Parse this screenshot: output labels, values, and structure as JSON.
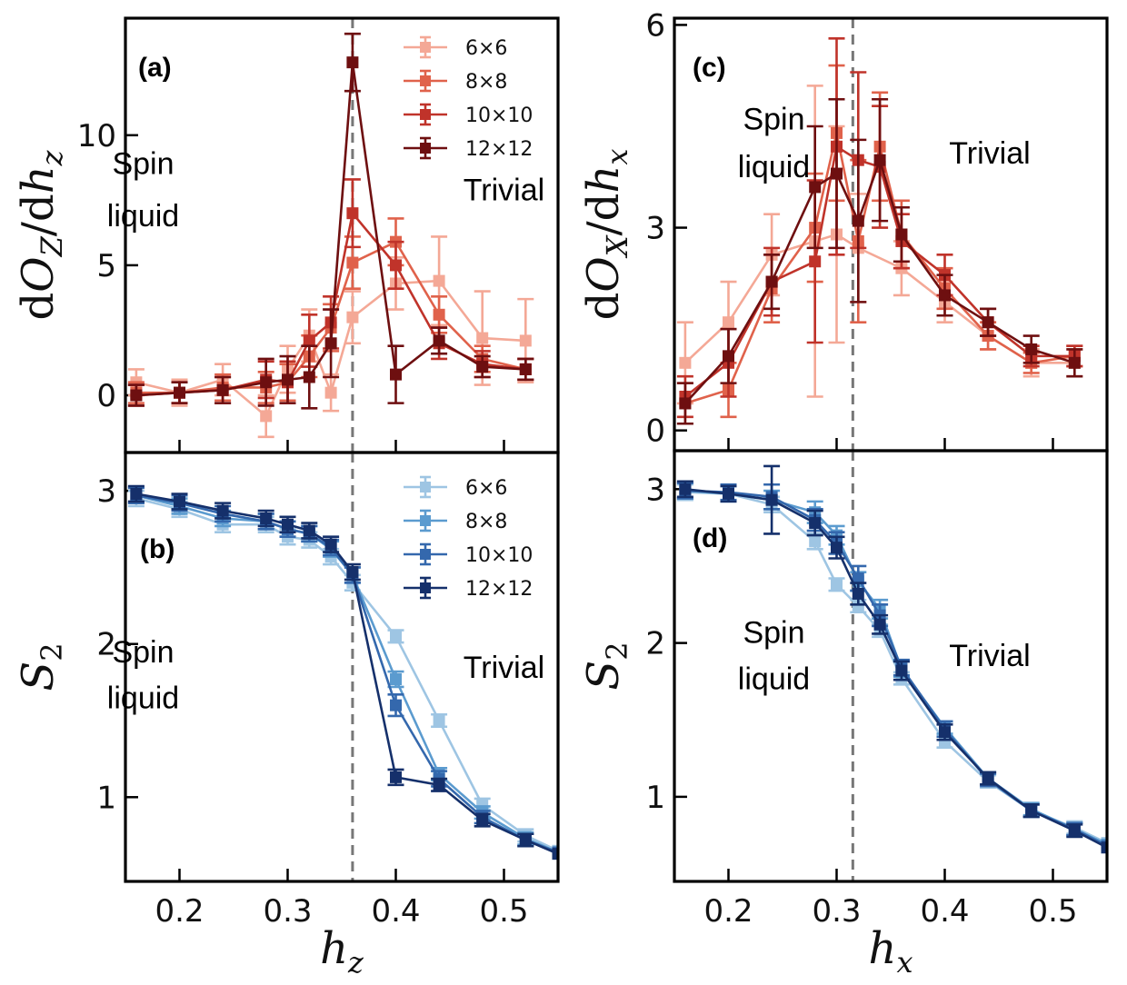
{
  "chart_data": [
    {
      "id": "a",
      "type": "line",
      "panel_label": "(a)",
      "xlim": [
        0.15,
        0.55
      ],
      "ylim": [
        -2.2,
        14.5
      ],
      "xticks": [
        0.2,
        0.3,
        0.4,
        0.5
      ],
      "yticks": [
        0,
        5,
        10
      ],
      "ytick_labels": [
        "0",
        "5",
        "10"
      ],
      "ylabel": "dO_Z/dh_z",
      "ylabel_parts": {
        "prefix": "d",
        "main": "O",
        "main_sub": "Z",
        "slash": "/d",
        "var": "h",
        "var_sub": "z"
      },
      "critical_x": 0.36,
      "regions": [
        {
          "text": "Spin",
          "x": 0.2,
          "y": 8.5
        },
        {
          "text": "liquid",
          "x": 0.2,
          "y": 6.5
        },
        {
          "text": "Trivial",
          "x": 0.5,
          "y": 7.5
        }
      ],
      "legend_position": "top-right",
      "series": [
        {
          "name": "6×6",
          "color": "#f4a896",
          "x": [
            0.16,
            0.2,
            0.24,
            0.28,
            0.3,
            0.32,
            0.34,
            0.36,
            0.4,
            0.44,
            0.48,
            0.52
          ],
          "y": [
            0.5,
            0.1,
            0.6,
            -0.8,
            1.0,
            2.3,
            0.1,
            3.0,
            4.3,
            4.4,
            2.2,
            2.1
          ],
          "err": [
            0.5,
            0.5,
            0.6,
            0.8,
            0.9,
            1.0,
            0.7,
            1.0,
            1.0,
            1.7,
            1.8,
            1.6
          ]
        },
        {
          "name": "8×8",
          "color": "#e0624b",
          "x": [
            0.16,
            0.2,
            0.24,
            0.28,
            0.3,
            0.32,
            0.34,
            0.36,
            0.4,
            0.44,
            0.48,
            0.52
          ],
          "y": [
            0.1,
            0.1,
            0.3,
            0.3,
            0.5,
            1.5,
            2.6,
            5.1,
            5.9,
            3.1,
            1.4,
            1.0
          ],
          "err": [
            0.4,
            0.4,
            0.5,
            0.6,
            0.7,
            0.8,
            0.9,
            1.0,
            0.9,
            0.7,
            0.5,
            0.4
          ]
        },
        {
          "name": "10×10",
          "color": "#c0332a",
          "x": [
            0.16,
            0.2,
            0.24,
            0.28,
            0.3,
            0.32,
            0.34,
            0.36,
            0.4,
            0.44,
            0.48,
            0.52
          ],
          "y": [
            0.0,
            0.1,
            0.2,
            0.6,
            0.5,
            2.1,
            2.8,
            7.0,
            5.0,
            2.0,
            1.2,
            1.0
          ],
          "err": [
            0.4,
            0.4,
            0.5,
            0.7,
            0.8,
            1.0,
            1.0,
            1.3,
            0.9,
            0.6,
            0.5,
            0.4
          ]
        },
        {
          "name": "12×12",
          "color": "#6e0f10",
          "x": [
            0.16,
            0.2,
            0.24,
            0.28,
            0.3,
            0.32,
            0.34,
            0.36,
            0.4,
            0.44,
            0.48,
            0.52
          ],
          "y": [
            0.0,
            0.1,
            0.2,
            0.5,
            0.6,
            0.7,
            2.0,
            12.8,
            0.8,
            2.1,
            1.1,
            1.0
          ],
          "err": [
            0.4,
            0.4,
            0.5,
            0.9,
            0.9,
            1.2,
            1.3,
            1.1,
            1.1,
            0.5,
            0.4,
            0.4
          ]
        }
      ]
    },
    {
      "id": "b",
      "type": "line",
      "panel_label": "(b)",
      "xlim": [
        0.15,
        0.55
      ],
      "ylim": [
        0.45,
        3.25
      ],
      "xticks": [
        0.2,
        0.3,
        0.4,
        0.5
      ],
      "xtick_labels": [
        "0.2",
        "0.3",
        "0.4",
        "0.5"
      ],
      "yticks": [
        1,
        2,
        3
      ],
      "ytick_labels": [
        "1",
        "2",
        "3"
      ],
      "xlabel_parts": {
        "var": "h",
        "var_sub": "z"
      },
      "ylabel_parts": {
        "var": "S",
        "var_sub": "2"
      },
      "critical_x": 0.36,
      "regions": [
        {
          "text": "Spin",
          "x": 0.2,
          "y": 1.88
        },
        {
          "text": "liquid",
          "x": 0.2,
          "y": 1.58
        },
        {
          "text": "Trivial",
          "x": 0.5,
          "y": 1.78
        }
      ],
      "legend_position": "top-right",
      "series": [
        {
          "name": "6×6",
          "color": "#9ec5e3",
          "x": [
            0.16,
            0.2,
            0.24,
            0.28,
            0.3,
            0.32,
            0.34,
            0.36,
            0.4,
            0.44,
            0.48,
            0.52,
            0.55
          ],
          "y": [
            2.95,
            2.88,
            2.78,
            2.78,
            2.7,
            2.68,
            2.57,
            2.4,
            2.05,
            1.5,
            0.95,
            0.75,
            0.65
          ],
          "err": [
            0.05,
            0.05,
            0.05,
            0.05,
            0.05,
            0.05,
            0.05,
            0.05,
            0.04,
            0.04,
            0.04,
            0.04,
            0
          ]
        },
        {
          "name": "8×8",
          "color": "#5b9bcf",
          "x": [
            0.16,
            0.2,
            0.24,
            0.28,
            0.3,
            0.32,
            0.34,
            0.36,
            0.4,
            0.44,
            0.48,
            0.52,
            0.55
          ],
          "y": [
            2.97,
            2.9,
            2.82,
            2.8,
            2.75,
            2.72,
            2.62,
            2.45,
            1.77,
            1.15,
            0.9,
            0.73,
            0.64
          ],
          "err": [
            0.05,
            0.05,
            0.05,
            0.05,
            0.05,
            0.05,
            0.05,
            0.05,
            0.05,
            0.04,
            0.04,
            0.04,
            0
          ]
        },
        {
          "name": "10×10",
          "color": "#3468ad",
          "x": [
            0.16,
            0.2,
            0.24,
            0.28,
            0.3,
            0.32,
            0.34,
            0.36,
            0.4,
            0.44,
            0.48,
            0.52,
            0.55
          ],
          "y": [
            2.97,
            2.92,
            2.85,
            2.8,
            2.75,
            2.72,
            2.63,
            2.45,
            1.6,
            1.12,
            0.87,
            0.72,
            0.64
          ],
          "err": [
            0.05,
            0.05,
            0.05,
            0.05,
            0.05,
            0.05,
            0.05,
            0.05,
            0.07,
            0.05,
            0.04,
            0.04,
            0
          ]
        },
        {
          "name": "12×12",
          "color": "#15306b",
          "x": [
            0.16,
            0.2,
            0.24,
            0.28,
            0.3,
            0.32,
            0.34,
            0.36,
            0.4,
            0.44,
            0.48,
            0.52,
            0.55
          ],
          "y": [
            2.98,
            2.93,
            2.87,
            2.82,
            2.78,
            2.74,
            2.65,
            2.47,
            1.13,
            1.08,
            0.85,
            0.72,
            0.63
          ],
          "err": [
            0.05,
            0.05,
            0.05,
            0.05,
            0.05,
            0.05,
            0.05,
            0.05,
            0.05,
            0.04,
            0.04,
            0.04,
            0
          ]
        }
      ]
    },
    {
      "id": "c",
      "type": "line",
      "panel_label": "(c)",
      "xlim": [
        0.15,
        0.55
      ],
      "ylim": [
        -0.3,
        6.1
      ],
      "xticks": [
        0.2,
        0.3,
        0.4,
        0.5
      ],
      "yticks": [
        0,
        3,
        6
      ],
      "ytick_labels": [
        "0",
        "3",
        "6"
      ],
      "ylabel_parts": {
        "prefix": "d",
        "main": "O",
        "main_sub": "X",
        "slash": "/d",
        "var": "h",
        "var_sub": "x"
      },
      "critical_x": 0.315,
      "regions": [
        {
          "text": "Spin",
          "x": 0.2,
          "y": 4.45
        },
        {
          "text": "liquid",
          "x": 0.2,
          "y": 3.75
        },
        {
          "text": "Trivial",
          "x": 0.45,
          "y": 3.95
        }
      ],
      "legend_position": "none",
      "series": [
        {
          "name": "6×6",
          "color": "#f4a896",
          "x": [
            0.16,
            0.2,
            0.24,
            0.28,
            0.3,
            0.32,
            0.36,
            0.4,
            0.44,
            0.48,
            0.52
          ],
          "y": [
            1.0,
            1.6,
            2.6,
            2.8,
            2.9,
            2.7,
            2.4,
            1.9,
            1.4,
            1.0,
            1.0
          ],
          "err": [
            0.6,
            0.6,
            0.6,
            2.3,
            1.6,
            0.8,
            0.4,
            0.3,
            0.2,
            0.2,
            0.2
          ]
        },
        {
          "name": "8×8",
          "color": "#e0624b",
          "x": [
            0.16,
            0.2,
            0.24,
            0.28,
            0.3,
            0.32,
            0.34,
            0.36,
            0.4,
            0.44,
            0.48,
            0.52
          ],
          "y": [
            0.4,
            0.6,
            2.1,
            3.0,
            4.4,
            2.8,
            4.2,
            2.9,
            2.1,
            1.4,
            1.0,
            1.1
          ],
          "err": [
            0.3,
            0.4,
            0.5,
            0.8,
            1.0,
            1.2,
            0.8,
            0.5,
            0.3,
            0.2,
            0.15,
            0.15
          ]
        },
        {
          "name": "10×10",
          "color": "#c0332a",
          "x": [
            0.16,
            0.2,
            0.24,
            0.28,
            0.3,
            0.32,
            0.34,
            0.36,
            0.4,
            0.44,
            0.48,
            0.52
          ],
          "y": [
            0.5,
            1.0,
            2.2,
            2.5,
            4.2,
            4.0,
            3.9,
            2.8,
            2.3,
            1.6,
            1.1,
            1.1
          ],
          "err": [
            0.3,
            0.5,
            0.5,
            1.2,
            1.6,
            1.3,
            0.9,
            0.4,
            0.3,
            0.2,
            0.15,
            0.15
          ]
        },
        {
          "name": "12×12",
          "color": "#6e0f10",
          "x": [
            0.16,
            0.2,
            0.24,
            0.28,
            0.3,
            0.32,
            0.34,
            0.36,
            0.4,
            0.44,
            0.48,
            0.52
          ],
          "y": [
            0.4,
            1.1,
            2.2,
            3.6,
            3.8,
            3.1,
            4.0,
            2.9,
            2.0,
            1.6,
            1.2,
            1.0
          ],
          "err": [
            0.3,
            0.4,
            0.4,
            0.9,
            1.1,
            1.2,
            0.9,
            0.4,
            0.3,
            0.2,
            0.2,
            0.2
          ]
        }
      ]
    },
    {
      "id": "d",
      "type": "line",
      "panel_label": "(d)",
      "xlim": [
        0.15,
        0.55
      ],
      "ylim": [
        0.45,
        3.25
      ],
      "xticks": [
        0.2,
        0.3,
        0.4,
        0.5
      ],
      "xtick_labels": [
        "0.2",
        "0.3",
        "0.4",
        "0.5"
      ],
      "yticks": [
        1,
        2,
        3
      ],
      "ytick_labels": [
        "1",
        "2",
        "3"
      ],
      "xlabel_parts": {
        "var": "h",
        "var_sub": "x"
      },
      "ylabel_parts": {
        "var": "S",
        "var_sub": "2"
      },
      "critical_x": 0.315,
      "regions": [
        {
          "text": "Spin",
          "x": 0.2,
          "y": 2.0
        },
        {
          "text": "liquid",
          "x": 0.2,
          "y": 1.7
        },
        {
          "text": "Trivial",
          "x": 0.45,
          "y": 1.85
        }
      ],
      "legend_position": "none",
      "series": [
        {
          "name": "6×6",
          "color": "#9ec5e3",
          "x": [
            0.16,
            0.2,
            0.24,
            0.28,
            0.3,
            0.32,
            0.34,
            0.36,
            0.4,
            0.44,
            0.48,
            0.52,
            0.55
          ],
          "y": [
            2.98,
            2.97,
            2.9,
            2.66,
            2.38,
            2.24,
            2.08,
            1.77,
            1.36,
            1.1,
            0.91,
            0.8,
            0.7
          ],
          "err": [
            0.05,
            0.05,
            0.05,
            0.05,
            0.04,
            0.04,
            0.04,
            0.04,
            0.04,
            0.04,
            0.04,
            0.04,
            0
          ]
        },
        {
          "name": "8×8",
          "color": "#5b9bcf",
          "x": [
            0.16,
            0.2,
            0.24,
            0.28,
            0.3,
            0.32,
            0.34,
            0.36,
            0.4,
            0.44,
            0.48,
            0.52,
            0.55
          ],
          "y": [
            2.99,
            2.97,
            2.93,
            2.85,
            2.7,
            2.4,
            2.22,
            1.83,
            1.45,
            1.12,
            0.92,
            0.79,
            0.69
          ],
          "err": [
            0.05,
            0.05,
            0.06,
            0.07,
            0.06,
            0.06,
            0.06,
            0.05,
            0.04,
            0.04,
            0.04,
            0.04,
            0
          ]
        },
        {
          "name": "10×10",
          "color": "#3468ad",
          "x": [
            0.16,
            0.2,
            0.24,
            0.28,
            0.3,
            0.32,
            0.34,
            0.36,
            0.4,
            0.44,
            0.48,
            0.52,
            0.55
          ],
          "y": [
            2.99,
            2.98,
            2.95,
            2.8,
            2.65,
            2.42,
            2.18,
            1.84,
            1.44,
            1.11,
            0.91,
            0.79,
            0.68
          ],
          "err": [
            0.05,
            0.05,
            0.08,
            0.07,
            0.07,
            0.08,
            0.07,
            0.05,
            0.05,
            0.04,
            0.04,
            0.04,
            0
          ]
        },
        {
          "name": "12×12",
          "color": "#15306b",
          "x": [
            0.16,
            0.2,
            0.24,
            0.28,
            0.3,
            0.32,
            0.34,
            0.36,
            0.4,
            0.44,
            0.48,
            0.52,
            0.55
          ],
          "y": [
            3.0,
            2.97,
            2.93,
            2.78,
            2.62,
            2.32,
            2.12,
            1.82,
            1.42,
            1.12,
            0.91,
            0.78,
            0.67
          ],
          "err": [
            0.05,
            0.05,
            0.22,
            0.08,
            0.07,
            0.07,
            0.06,
            0.06,
            0.05,
            0.04,
            0.04,
            0.04,
            0
          ]
        }
      ]
    }
  ]
}
